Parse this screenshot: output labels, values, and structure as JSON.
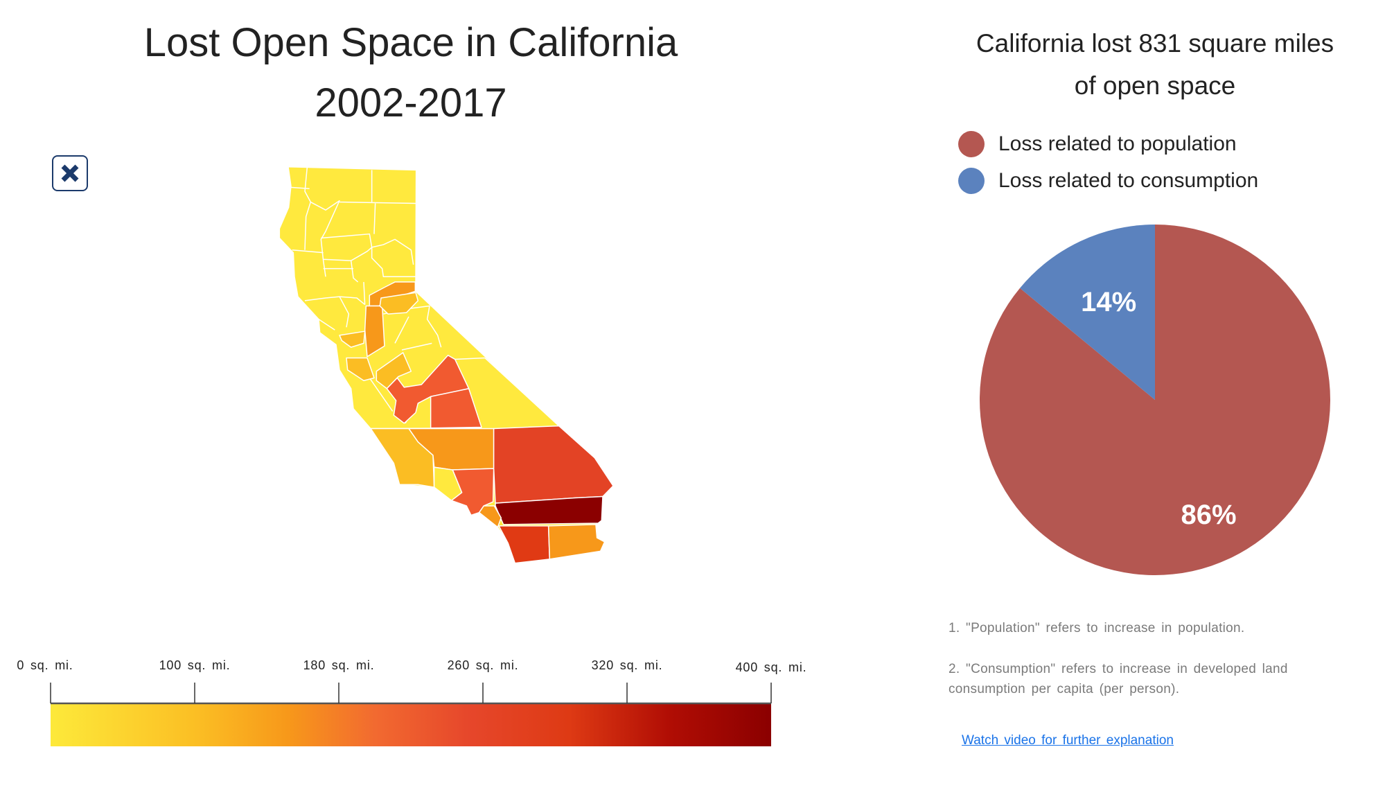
{
  "map": {
    "title_line1": "Lost Open Space in California",
    "title_line2": "2002-2017",
    "close_icon": "close-x-icon",
    "scale": {
      "labels": [
        "0 sq. mi.",
        "100 sq. mi.",
        "180 sq. mi.",
        "260 sq. mi.",
        "320 sq. mi.",
        "400 sq. mi."
      ],
      "colors": [
        "#fde93a",
        "#fbbf24",
        "#f7981a",
        "#f26a30",
        "#e6472b",
        "#de3a14",
        "#b00d04",
        "#8b0000"
      ]
    }
  },
  "chart_data": {
    "type": "pie",
    "title": "California lost 831 square miles of open space",
    "title_line1": "California lost 831 square miles",
    "title_line2": "of open space",
    "legend_position": "top-left",
    "slices": [
      {
        "name": "Loss related to population",
        "value": 86,
        "label": "86%",
        "color": "#b45751"
      },
      {
        "name": "Loss related to consumption",
        "value": 14,
        "label": "14%",
        "color": "#5b82be"
      }
    ]
  },
  "notes": [
    "1. \"Population\" refers to increase in population.",
    "2. \"Consumption\" refers to increase in developed land consumption per capita (per person)."
  ],
  "video_link": "Watch video for further explanation"
}
